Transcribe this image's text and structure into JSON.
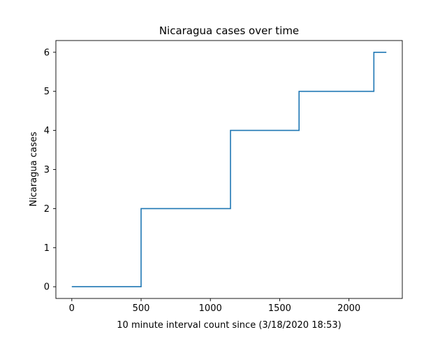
{
  "chart_data": {
    "type": "line",
    "title": "Nicaragua cases over time",
    "xlabel": "10 minute interval count since (3/18/2020 18:53)",
    "ylabel": "Nicaragua cases",
    "xlim": [
      -115,
      2385
    ],
    "ylim": [
      -0.3,
      6.3
    ],
    "xticks": [
      0,
      500,
      1000,
      1500,
      2000
    ],
    "yticks": [
      0,
      1,
      2,
      3,
      4,
      5,
      6
    ],
    "grid": false,
    "series": [
      {
        "color": "#1f77b4",
        "step": true,
        "x": [
          0,
          500,
          1145,
          1640,
          2180,
          2270
        ],
        "y": [
          0,
          2,
          4,
          5,
          6,
          6
        ]
      }
    ]
  }
}
